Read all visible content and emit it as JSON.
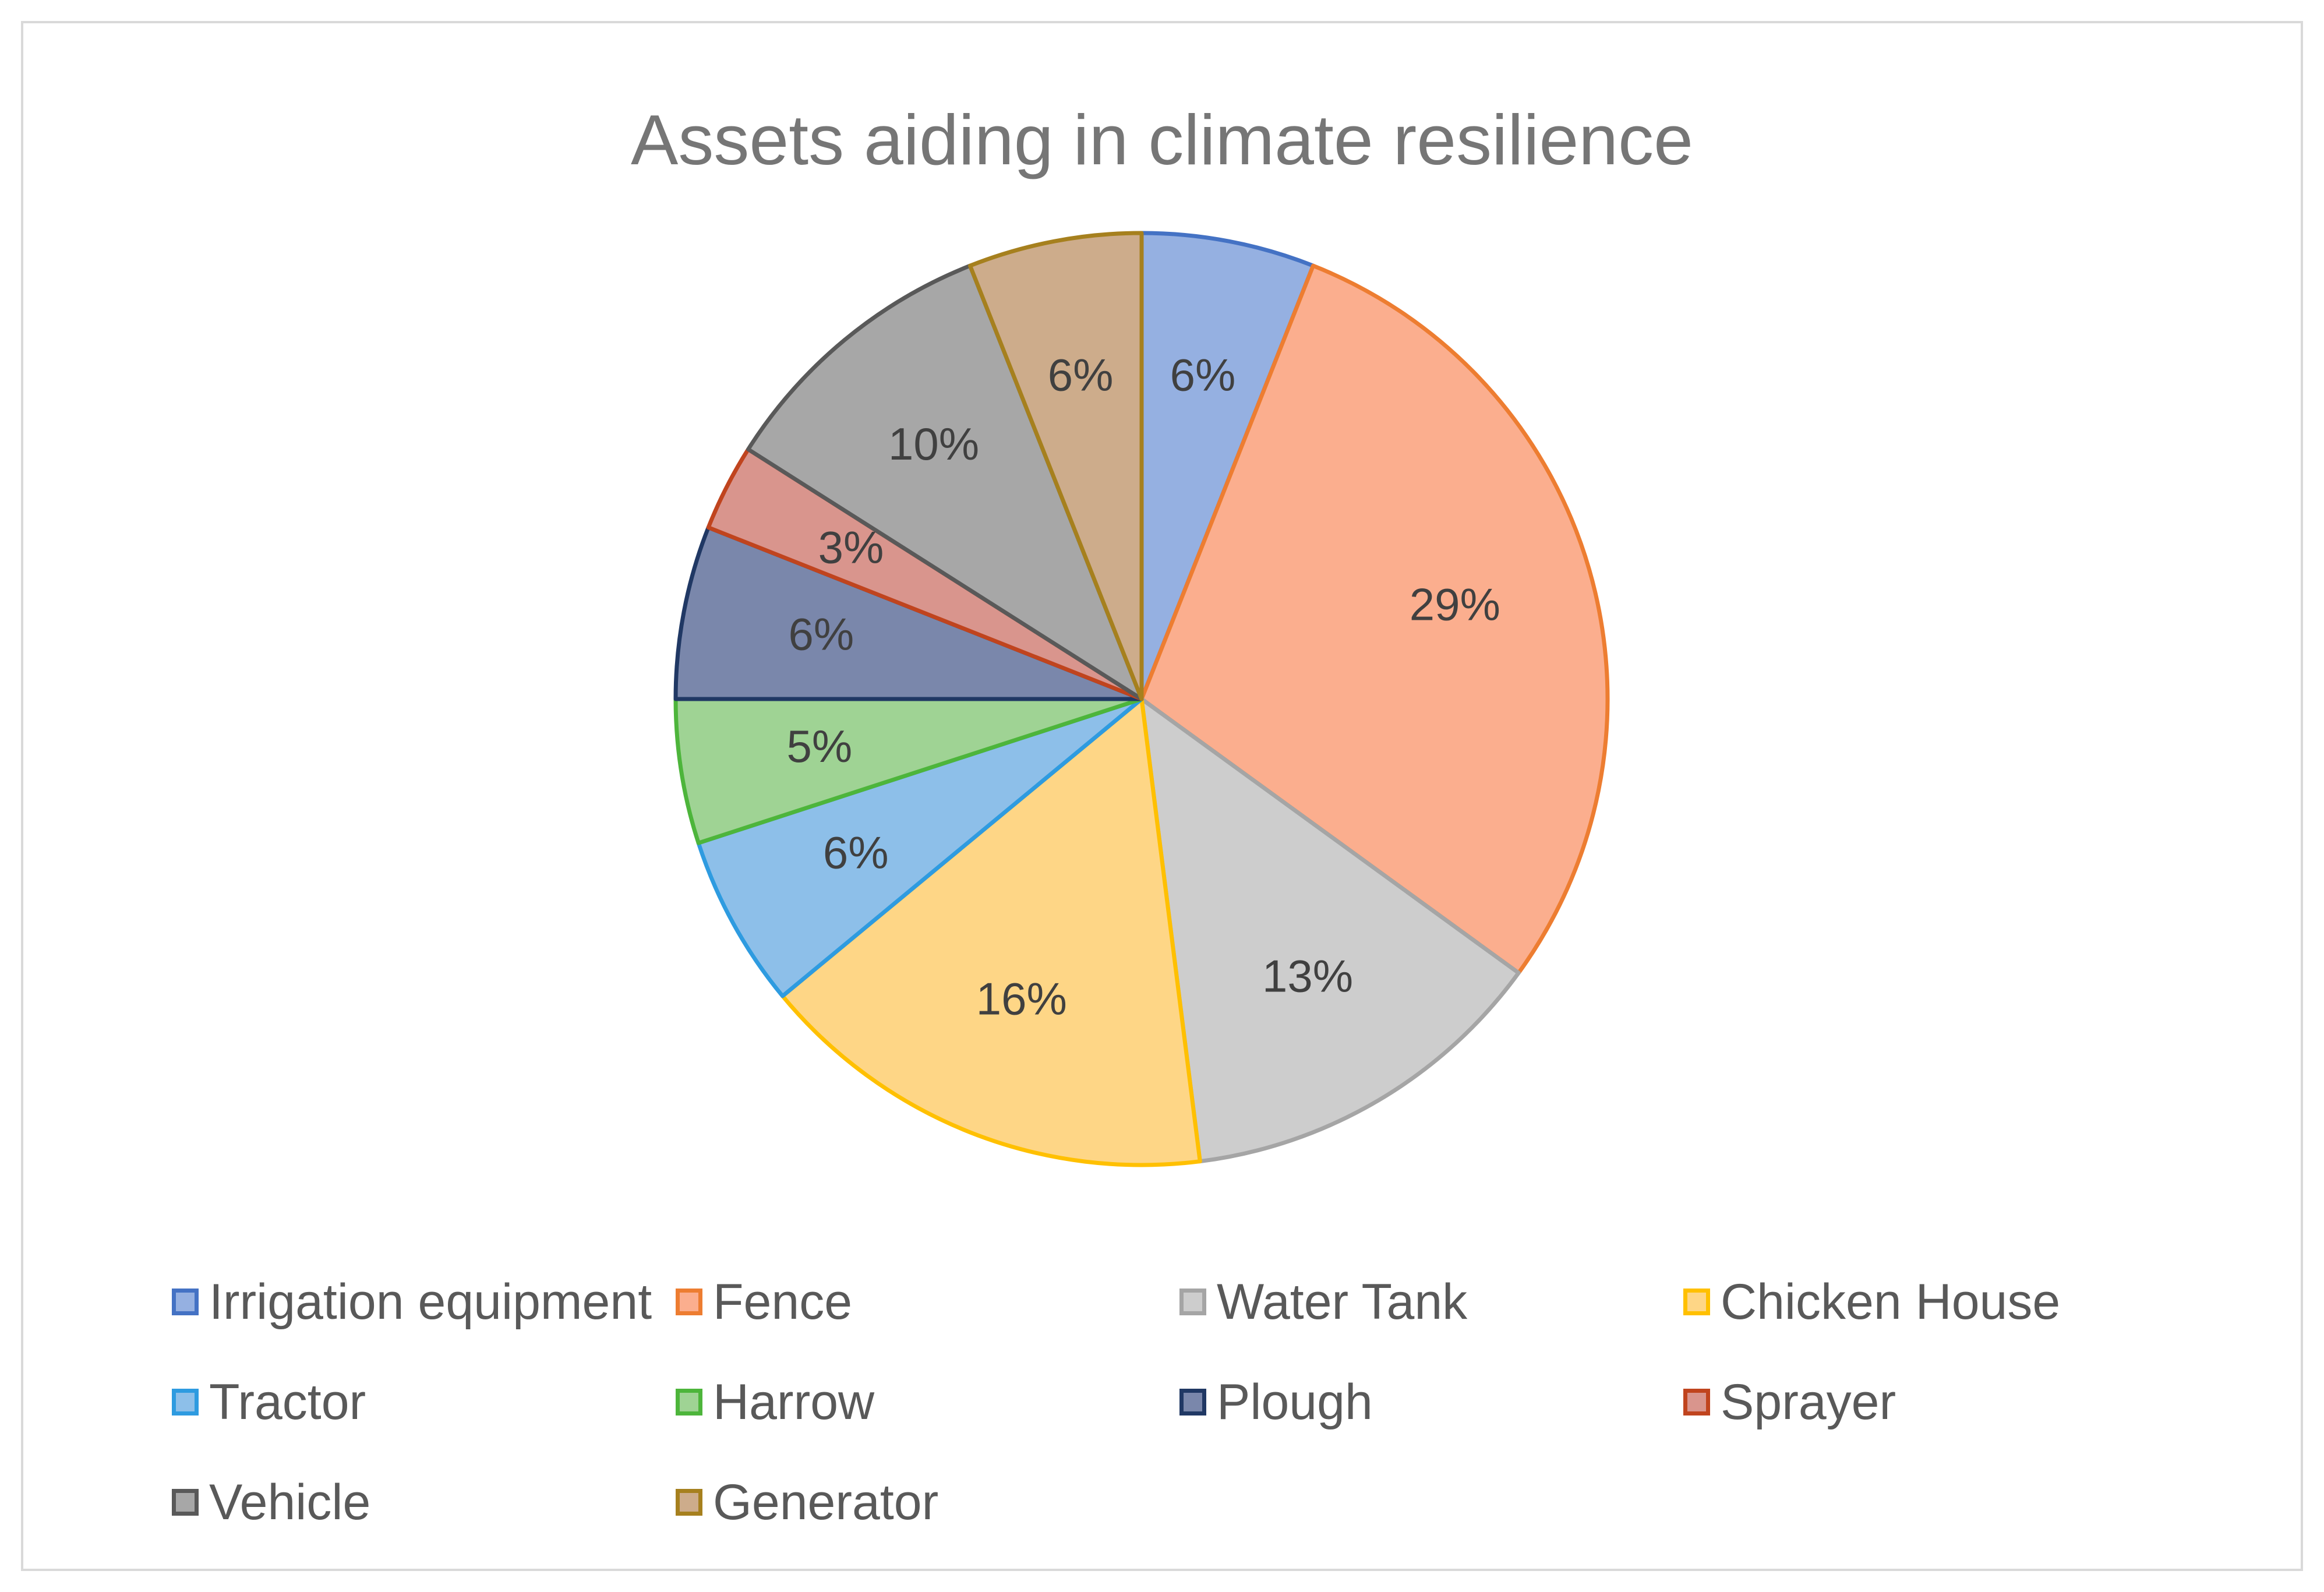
{
  "chart_data": {
    "type": "pie",
    "title": "Assets aiding in climate resilience",
    "categories": [
      "Irrigation equipment",
      "Fence",
      "Water Tank",
      "Chicken House",
      "Tractor",
      "Harrow",
      "Plough",
      "Sprayer",
      "Vehicle",
      "Generator"
    ],
    "values": [
      6,
      29,
      13,
      16,
      6,
      5,
      6,
      3,
      10,
      6
    ],
    "labels": [
      "6%",
      "29%",
      "13%",
      "16%",
      "6%",
      "5%",
      "6%",
      "3%",
      "10%",
      "6%"
    ],
    "colors": [
      "#95b0e1",
      "#fbae8e",
      "#cdcdcd",
      "#fed686",
      "#8dbfe9",
      "#9fd394",
      "#7a87ab",
      "#d9958d",
      "#a7a7a7",
      "#cdac8b"
    ],
    "border_colors": [
      "#4472c4",
      "#ed7d31",
      "#a5a5a5",
      "#ffc000",
      "#2e9be0",
      "#4db53b",
      "#203864",
      "#c0441e",
      "#595959",
      "#a6801e"
    ],
    "legend_position": "bottom"
  }
}
